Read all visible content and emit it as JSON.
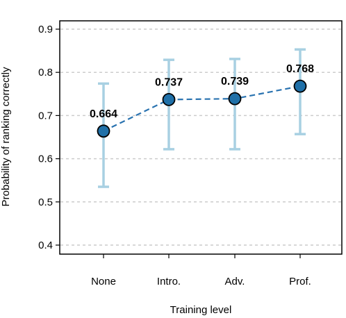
{
  "chart_data": {
    "type": "line",
    "categories": [
      "None",
      "Intro.",
      "Adv.",
      "Prof."
    ],
    "series": [
      {
        "values": [
          0.664,
          0.737,
          0.739,
          0.768
        ],
        "error_low": [
          0.535,
          0.622,
          0.622,
          0.657
        ],
        "error_high": [
          0.774,
          0.829,
          0.831,
          0.853
        ],
        "data_labels": [
          "0.664",
          "0.737",
          "0.739",
          "0.768"
        ]
      }
    ],
    "xlabel": "Training level",
    "ylabel": "Probability of ranking correctly",
    "ylim": [
      0.4,
      0.9
    ],
    "yticks": [
      0.4,
      0.5,
      0.6,
      0.7,
      0.8,
      0.9
    ],
    "ytick_labels": [
      "0.4",
      "0.5",
      "0.6",
      "0.7",
      "0.8",
      "0.9"
    ],
    "grid": "horizontal dashed",
    "colors": {
      "line": "#2a73b0",
      "marker_fill": "#1f70a8",
      "marker_edge": "#000000",
      "error_bar": "#a8d0e2",
      "grid": "#cccccc"
    }
  }
}
